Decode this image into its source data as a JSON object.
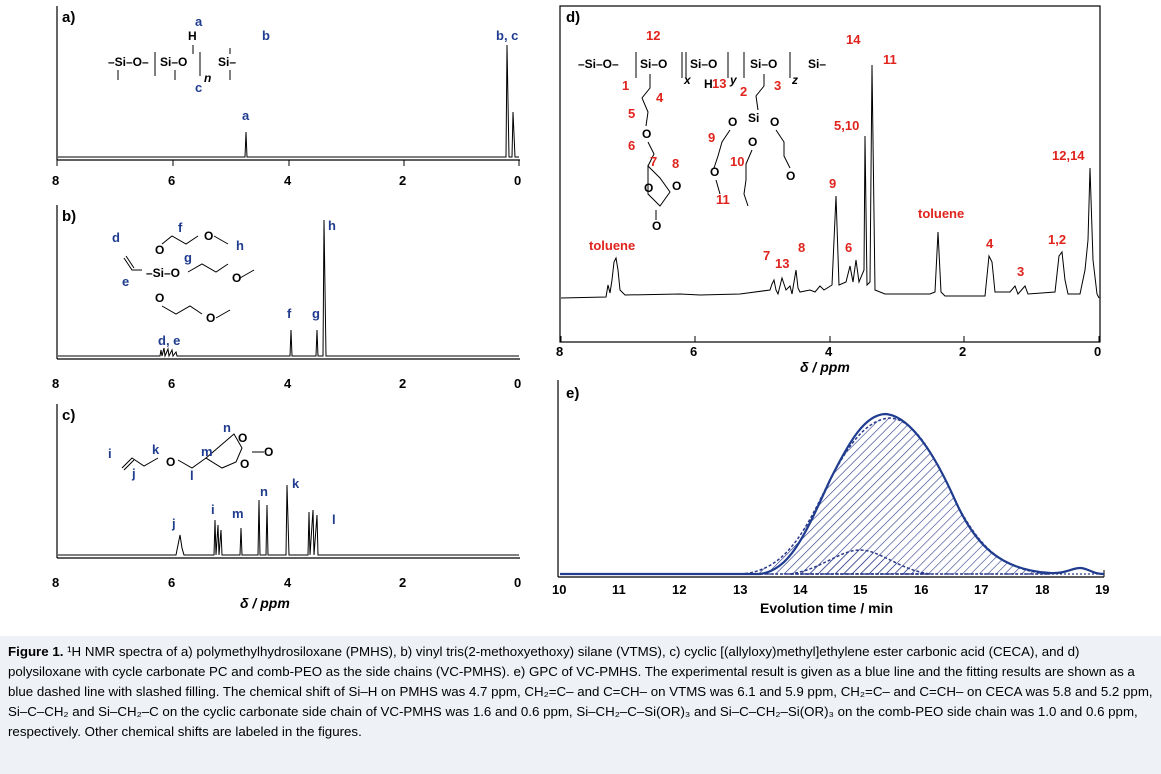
{
  "panels": {
    "a": {
      "label": "a)",
      "peaks": {
        "a": "a",
        "bc": "b, c"
      }
    },
    "b": {
      "label": "b)",
      "peaks": {
        "de": "d, e",
        "f": "f",
        "g": "g",
        "h": "h"
      }
    },
    "c": {
      "label": "c)",
      "peaks": {
        "j": "j",
        "i": "i",
        "m": "m",
        "n": "n",
        "k": "k",
        "l": "l"
      }
    },
    "d": {
      "label": "d)",
      "peaks": {
        "toluene1": "toluene",
        "toluene2": "toluene",
        "p7": "7",
        "p13": "13",
        "p8": "8",
        "p6": "6",
        "p9": "9",
        "p510": "5,10",
        "p11": "11",
        "p4": "4",
        "p3": "3",
        "p12": "1,2",
        "p1214": "12,14"
      }
    },
    "e": {
      "label": "e)"
    }
  },
  "axes": {
    "ppm_ticks": [
      "8",
      "6",
      "4",
      "2",
      "0"
    ],
    "ppm_title": "δ / ppm",
    "gpc_ticks": [
      "10",
      "11",
      "12",
      "13",
      "14",
      "15",
      "16",
      "17",
      "18",
      "19"
    ],
    "gpc_title": "Evolution time / min"
  },
  "caption": {
    "fig": "Figure 1.",
    "text": " ¹H NMR spectra of a) polymethylhydrosiloxane (PMHS), b) vinyl tris(2-methoxyethoxy) silane (VTMS), c) cyclic [(allyloxy)methyl]ethylene ester carbonic acid (CECA), and d) polysiloxane with cycle carbonate PC and comb-PEO as the side chains (VC-PMHS). e) GPC of VC-PMHS. The experimental result is given as a blue line and the fitting results are shown as a blue dashed line with slashed filling. The chemical shift of Si–H on PMHS was 4.7 ppm, CH₂=C– and C=CH– on VTMS was 6.1 and 5.9 ppm, CH₂=C– and C=CH– on CECA was 5.8 and 5.2 ppm, Si–C–CH₂ and Si–CH₂–C on the cyclic carbonate side chain of VC-PMHS was 1.6 and 0.6 ppm, Si–CH₂–C–Si(OR)₃ and Si–C–CH₂–Si(OR)₃ on the comb-PEO side chain was 1.0 and 0.6 ppm, respectively. Other chemical shifts are labeled in the figures."
  }
}
